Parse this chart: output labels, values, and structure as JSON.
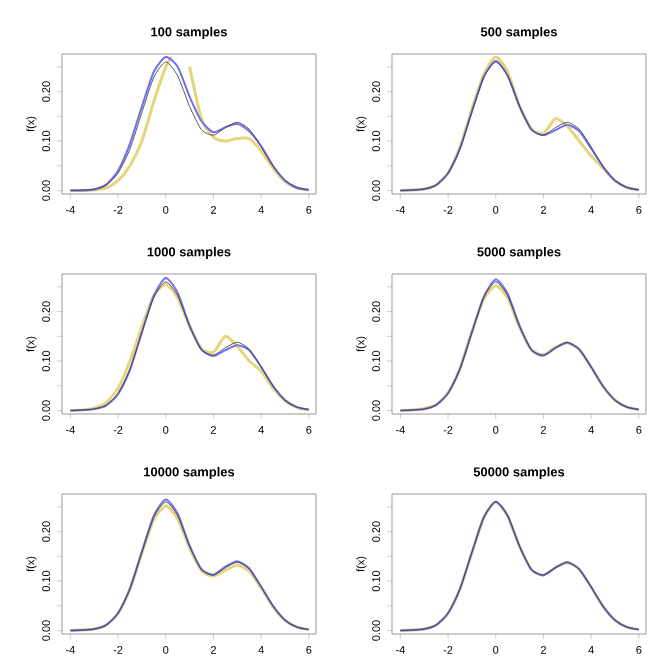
{
  "chart_data": [
    {
      "type": "line",
      "title": "100  samples",
      "ylabel": "f(x)",
      "x": [
        -4,
        -3.5,
        -3,
        -2.5,
        -2,
        -1.5,
        -1,
        -0.5,
        0,
        0.5,
        1,
        1.5,
        2,
        2.5,
        3,
        3.5,
        4,
        4.5,
        5,
        5.5,
        6
      ],
      "xlim": [
        -4.35,
        6.3
      ],
      "ylim": [
        -0.007,
        0.276
      ],
      "xticks": [
        -4,
        -2,
        0,
        2,
        4,
        6
      ],
      "yticks": [
        {
          "value": 0,
          "label": "0.00"
        },
        {
          "value": 0.05,
          "label": null
        },
        {
          "value": 0.1,
          "label": "0.10"
        },
        {
          "value": 0.15,
          "label": null
        },
        {
          "value": 0.2,
          "label": "0.20"
        },
        {
          "value": 0.25,
          "label": null
        }
      ],
      "series": [
        {
          "color": "#e6d57a",
          "x": [
            -4,
            -3.5,
            -3,
            -2.5,
            -2,
            -1.5,
            -1,
            -0.5,
            0,
            0.25,
            0.6,
            1,
            1.5,
            2,
            2.5,
            3,
            3.5,
            4,
            4.5,
            5,
            5.5,
            6
          ],
          "values": [
            0,
            0,
            0.001,
            0.005,
            0.02,
            0.05,
            0.1,
            0.18,
            0.25,
            0.27,
            null,
            0.25,
            0.145,
            0.108,
            0.1,
            0.105,
            0.105,
            0.08,
            0.045,
            0.018,
            0.005,
            0.001
          ]
        },
        {
          "color": "#7070f0",
          "values": [
            0,
            0,
            0.002,
            0.012,
            0.04,
            0.095,
            0.17,
            0.24,
            0.27,
            0.25,
            0.19,
            0.14,
            0.118,
            0.128,
            0.135,
            0.12,
            0.09,
            0.05,
            0.02,
            0.005,
            0.001
          ]
        },
        {
          "color": "#444444",
          "values": [
            0,
            0.001,
            0.003,
            0.011,
            0.035,
            0.084,
            0.158,
            0.229,
            0.26,
            0.232,
            0.17,
            0.123,
            0.112,
            0.127,
            0.138,
            0.124,
            0.088,
            0.049,
            0.021,
            0.007,
            0.002
          ]
        }
      ]
    },
    {
      "type": "line",
      "title": "500  samples",
      "ylabel": "f(x)",
      "x": [
        -4,
        -3.5,
        -3,
        -2.5,
        -2,
        -1.5,
        -1,
        -0.5,
        0,
        0.5,
        1,
        1.5,
        2,
        2.5,
        3,
        3.5,
        4,
        4.5,
        5,
        5.5,
        6
      ],
      "xlim": [
        -4.35,
        6.3
      ],
      "ylim": [
        -0.007,
        0.276
      ],
      "xticks": [
        -4,
        -2,
        0,
        2,
        4,
        6
      ],
      "yticks": [
        {
          "value": 0,
          "label": "0.00"
        },
        {
          "value": 0.05,
          "label": null
        },
        {
          "value": 0.1,
          "label": "0.10"
        },
        {
          "value": 0.15,
          "label": null
        },
        {
          "value": 0.2,
          "label": "0.20"
        },
        {
          "value": 0.25,
          "label": null
        }
      ],
      "series": [
        {
          "color": "#e6d57a",
          "values": [
            0,
            0.001,
            0.003,
            0.011,
            0.036,
            0.088,
            0.165,
            0.235,
            0.27,
            0.24,
            0.17,
            0.125,
            0.115,
            0.145,
            0.13,
            0.1,
            0.07,
            0.045,
            0.02,
            0.006,
            0.001
          ]
        },
        {
          "color": "#7070f0",
          "values": [
            0,
            0.001,
            0.003,
            0.011,
            0.035,
            0.085,
            0.16,
            0.23,
            0.262,
            0.232,
            0.17,
            0.123,
            0.112,
            0.122,
            0.133,
            0.12,
            0.085,
            0.048,
            0.02,
            0.006,
            0.001
          ]
        },
        {
          "color": "#444444",
          "values": [
            0,
            0.001,
            0.003,
            0.011,
            0.035,
            0.084,
            0.158,
            0.229,
            0.26,
            0.232,
            0.17,
            0.123,
            0.112,
            0.127,
            0.138,
            0.124,
            0.088,
            0.049,
            0.021,
            0.007,
            0.002
          ]
        }
      ]
    },
    {
      "type": "line",
      "title": "1000  samples",
      "ylabel": "f(x)",
      "x": [
        -4,
        -3.5,
        -3,
        -2.5,
        -2,
        -1.5,
        -1,
        -0.5,
        0,
        0.5,
        1,
        1.5,
        2,
        2.5,
        3,
        3.5,
        4,
        4.5,
        5,
        5.5,
        6
      ],
      "xlim": [
        -4.35,
        6.3
      ],
      "ylim": [
        -0.007,
        0.276
      ],
      "xticks": [
        -4,
        -2,
        0,
        2,
        4,
        6
      ],
      "yticks": [
        {
          "value": 0,
          "label": "0.00"
        },
        {
          "value": 0.05,
          "label": null
        },
        {
          "value": 0.1,
          "label": "0.10"
        },
        {
          "value": 0.15,
          "label": null
        },
        {
          "value": 0.2,
          "label": "0.20"
        },
        {
          "value": 0.25,
          "label": null
        }
      ],
      "series": [
        {
          "color": "#e6d57a",
          "values": [
            0,
            0.001,
            0.005,
            0.016,
            0.045,
            0.1,
            0.17,
            0.232,
            0.255,
            0.228,
            0.17,
            0.125,
            0.118,
            0.15,
            0.13,
            0.1,
            0.08,
            0.045,
            0.02,
            0.006,
            0.001
          ]
        },
        {
          "color": "#7070f0",
          "values": [
            0,
            0.001,
            0.003,
            0.01,
            0.033,
            0.082,
            0.158,
            0.232,
            0.268,
            0.238,
            0.172,
            0.123,
            0.11,
            0.122,
            0.132,
            0.122,
            0.088,
            0.05,
            0.021,
            0.007,
            0.002
          ]
        },
        {
          "color": "#444444",
          "values": [
            0,
            0.001,
            0.003,
            0.011,
            0.035,
            0.084,
            0.158,
            0.229,
            0.26,
            0.232,
            0.17,
            0.123,
            0.112,
            0.127,
            0.138,
            0.124,
            0.088,
            0.049,
            0.021,
            0.007,
            0.002
          ]
        }
      ]
    },
    {
      "type": "line",
      "title": "5000  samples",
      "ylabel": "f(x)",
      "x": [
        -4,
        -3.5,
        -3,
        -2.5,
        -2,
        -1.5,
        -1,
        -0.5,
        0,
        0.5,
        1,
        1.5,
        2,
        2.5,
        3,
        3.5,
        4,
        4.5,
        5,
        5.5,
        6
      ],
      "xlim": [
        -4.35,
        6.3
      ],
      "ylim": [
        -0.007,
        0.276
      ],
      "xticks": [
        -4,
        -2,
        0,
        2,
        4,
        6
      ],
      "yticks": [
        {
          "value": 0,
          "label": "0.00"
        },
        {
          "value": 0.05,
          "label": null
        },
        {
          "value": 0.1,
          "label": "0.10"
        },
        {
          "value": 0.15,
          "label": null
        },
        {
          "value": 0.2,
          "label": "0.20"
        },
        {
          "value": 0.25,
          "label": null
        }
      ],
      "series": [
        {
          "color": "#e6d57a",
          "values": [
            0,
            0.001,
            0.004,
            0.012,
            0.036,
            0.086,
            0.16,
            0.226,
            0.252,
            0.228,
            0.168,
            0.123,
            0.113,
            0.128,
            0.137,
            0.123,
            0.088,
            0.049,
            0.021,
            0.007,
            0.002
          ]
        },
        {
          "color": "#7070f0",
          "values": [
            0,
            0.001,
            0.003,
            0.011,
            0.035,
            0.084,
            0.158,
            0.23,
            0.265,
            0.236,
            0.171,
            0.122,
            0.111,
            0.126,
            0.137,
            0.124,
            0.088,
            0.049,
            0.021,
            0.007,
            0.002
          ]
        },
        {
          "color": "#444444",
          "values": [
            0,
            0.001,
            0.003,
            0.011,
            0.035,
            0.084,
            0.158,
            0.229,
            0.26,
            0.232,
            0.17,
            0.123,
            0.112,
            0.127,
            0.138,
            0.124,
            0.088,
            0.049,
            0.021,
            0.007,
            0.002
          ]
        }
      ]
    },
    {
      "type": "line",
      "title": "10000  samples",
      "ylabel": "f(x)",
      "x": [
        -4,
        -3.5,
        -3,
        -2.5,
        -2,
        -1.5,
        -1,
        -0.5,
        0,
        0.5,
        1,
        1.5,
        2,
        2.5,
        3,
        3.5,
        4,
        4.5,
        5,
        5.5,
        6
      ],
      "xlim": [
        -4.35,
        6.3
      ],
      "ylim": [
        -0.007,
        0.276
      ],
      "xticks": [
        -4,
        -2,
        0,
        2,
        4,
        6
      ],
      "yticks": [
        {
          "value": 0,
          "label": "0.00"
        },
        {
          "value": 0.05,
          "label": null
        },
        {
          "value": 0.1,
          "label": "0.10"
        },
        {
          "value": 0.15,
          "label": null
        },
        {
          "value": 0.2,
          "label": "0.20"
        },
        {
          "value": 0.25,
          "label": null
        }
      ],
      "series": [
        {
          "color": "#e6d57a",
          "values": [
            0,
            0.001,
            0.003,
            0.011,
            0.035,
            0.084,
            0.156,
            0.224,
            0.252,
            0.226,
            0.167,
            0.121,
            0.11,
            0.122,
            0.132,
            0.12,
            0.086,
            0.048,
            0.021,
            0.007,
            0.002
          ]
        },
        {
          "color": "#7070f0",
          "values": [
            0,
            0.001,
            0.003,
            0.011,
            0.035,
            0.085,
            0.16,
            0.232,
            0.265,
            0.236,
            0.172,
            0.124,
            0.113,
            0.129,
            0.14,
            0.126,
            0.089,
            0.05,
            0.021,
            0.007,
            0.002
          ]
        },
        {
          "color": "#444444",
          "values": [
            0,
            0.001,
            0.003,
            0.011,
            0.035,
            0.084,
            0.158,
            0.229,
            0.26,
            0.232,
            0.17,
            0.123,
            0.112,
            0.127,
            0.138,
            0.124,
            0.088,
            0.049,
            0.021,
            0.007,
            0.002
          ]
        }
      ]
    },
    {
      "type": "line",
      "title": "50000  samples",
      "ylabel": "f(x)",
      "x": [
        -4,
        -3.5,
        -3,
        -2.5,
        -2,
        -1.5,
        -1,
        -0.5,
        0,
        0.5,
        1,
        1.5,
        2,
        2.5,
        3,
        3.5,
        4,
        4.5,
        5,
        5.5,
        6
      ],
      "xlim": [
        -4.35,
        6.3
      ],
      "ylim": [
        -0.007,
        0.276
      ],
      "xticks": [
        -4,
        -2,
        0,
        2,
        4,
        6
      ],
      "yticks": [
        {
          "value": 0,
          "label": "0.00"
        },
        {
          "value": 0.05,
          "label": null
        },
        {
          "value": 0.1,
          "label": "0.10"
        },
        {
          "value": 0.15,
          "label": null
        },
        {
          "value": 0.2,
          "label": "0.20"
        },
        {
          "value": 0.25,
          "label": null
        }
      ],
      "series": [
        {
          "color": "#e6d57a",
          "values": [
            0,
            0.001,
            0.003,
            0.011,
            0.035,
            0.084,
            0.157,
            0.228,
            0.259,
            0.231,
            0.17,
            0.123,
            0.112,
            0.127,
            0.137,
            0.124,
            0.088,
            0.049,
            0.021,
            0.007,
            0.002
          ]
        },
        {
          "color": "#7070f0",
          "values": [
            0,
            0.001,
            0.003,
            0.011,
            0.035,
            0.084,
            0.158,
            0.229,
            0.261,
            0.232,
            0.17,
            0.123,
            0.112,
            0.127,
            0.138,
            0.124,
            0.088,
            0.049,
            0.021,
            0.007,
            0.002
          ]
        },
        {
          "color": "#444444",
          "values": [
            0,
            0.001,
            0.003,
            0.011,
            0.035,
            0.084,
            0.158,
            0.229,
            0.26,
            0.232,
            0.17,
            0.123,
            0.112,
            0.127,
            0.138,
            0.124,
            0.088,
            0.049,
            0.021,
            0.007,
            0.002
          ]
        }
      ]
    }
  ]
}
